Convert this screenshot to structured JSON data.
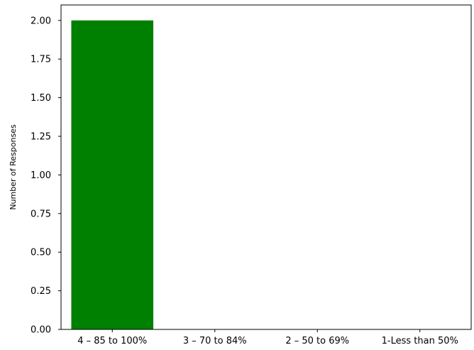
{
  "chart_data": {
    "type": "bar",
    "categories": [
      "4 – 85 to 100%",
      "3 – 70 to 84%",
      "2 – 50 to 69%",
      "1-Less than 50%"
    ],
    "values": [
      2,
      0,
      0,
      0
    ],
    "ylabel": "Number of Responses",
    "ylim": [
      0,
      2.1
    ],
    "yticks": [
      "0.00",
      "0.25",
      "0.50",
      "0.75",
      "1.00",
      "1.25",
      "1.50",
      "1.75",
      "2.00"
    ],
    "bar_color": "#008000",
    "grid": false
  }
}
